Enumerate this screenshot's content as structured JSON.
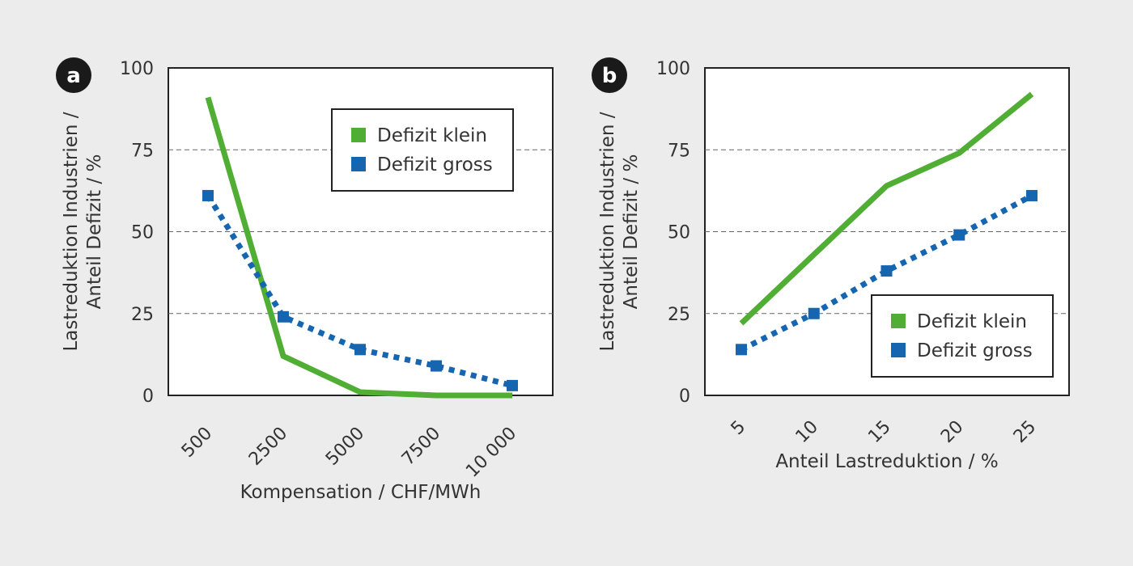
{
  "chart_data": [
    {
      "panel_label": "a",
      "type": "line",
      "x_scale": "category",
      "categories": [
        "500",
        "2500",
        "5000",
        "7500",
        "10 000"
      ],
      "x": [
        500,
        2500,
        5000,
        7500,
        10000
      ],
      "series": [
        {
          "name": "Defizit klein",
          "values": [
            91,
            12,
            1,
            0,
            0
          ],
          "color": "#4fae33",
          "style": "solid"
        },
        {
          "name": "Defizit gross",
          "values": [
            61,
            24,
            14,
            9,
            3
          ],
          "color": "#1565b0",
          "style": "dotted-square-markers"
        }
      ],
      "xlabel": "Kompensation / CHF/MWh",
      "ylabel_lines": [
        "Lastreduktion Industrien /",
        "Anteil Defizit / %"
      ],
      "yticks": [
        "0",
        "25",
        "50",
        "75",
        "100"
      ],
      "ylim": [
        0,
        100
      ],
      "grid": "horizontal dashed at 25, 50, 75",
      "legend": "top-right"
    },
    {
      "panel_label": "b",
      "type": "line",
      "x_scale": "linear",
      "categories": [
        "5",
        "10",
        "15",
        "20",
        "25"
      ],
      "x": [
        5,
        10,
        15,
        20,
        25
      ],
      "series": [
        {
          "name": "Defizit klein",
          "values": [
            22,
            43,
            64,
            74,
            92
          ],
          "color": "#4fae33",
          "style": "solid"
        },
        {
          "name": "Defizit gross",
          "values": [
            14,
            25,
            38,
            49,
            61
          ],
          "color": "#1565b0",
          "style": "dotted-square-markers"
        }
      ],
      "xlabel": "Anteil Lastreduktion / %",
      "ylabel_lines": [
        "Lastreduktion Industrien /",
        "Anteil Defizit / %"
      ],
      "yticks": [
        "0",
        "25",
        "50",
        "75",
        "100"
      ],
      "ylim": [
        0,
        100
      ],
      "grid": "horizontal dashed at 25, 50, 75",
      "legend": "bottom-right"
    }
  ]
}
